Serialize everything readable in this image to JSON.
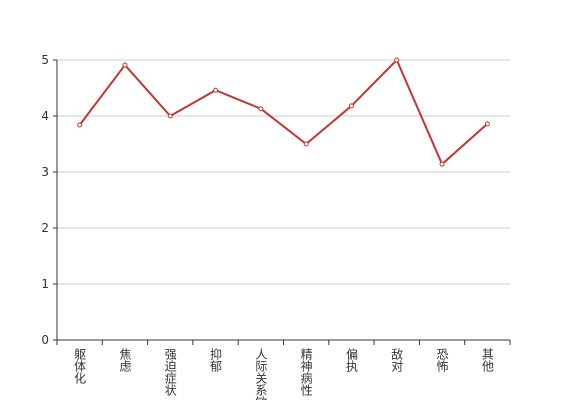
{
  "chart_data": {
    "type": "line",
    "categories": [
      "躯体化",
      "焦虑",
      "强迫症状",
      "抑郁",
      "人际关系敏感",
      "精神病性",
      "偏执",
      "敌对",
      "恐怖",
      "其他"
    ],
    "series": [
      {
        "color": "#c23531",
        "values": [
          3.84,
          4.91,
          4.0,
          4.46,
          4.13,
          3.5,
          4.18,
          5.0,
          3.14,
          3.86
        ]
      }
    ],
    "ylim": [
      0,
      5
    ],
    "yticks": [
      0,
      1,
      2,
      3,
      4,
      5
    ],
    "grid": true
  }
}
